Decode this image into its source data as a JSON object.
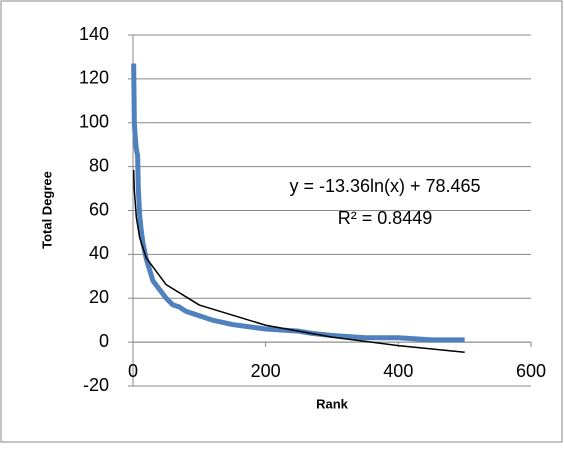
{
  "chart_data": {
    "type": "line",
    "x_label": "Rank",
    "y_label": "Total Degree",
    "annotations": [
      "y = -13.36ln(x) + 78.465",
      "R² = 0.8449"
    ],
    "xlim": [
      0,
      600
    ],
    "xticks": [
      0,
      200,
      400,
      600
    ],
    "ylim": [
      -20,
      140
    ],
    "yticks": [
      -20,
      0,
      20,
      40,
      60,
      80,
      100,
      120,
      140
    ],
    "grid": true,
    "series": [
      {
        "color": "#4f81bd",
        "x": [
          1,
          2,
          3,
          5,
          7,
          8,
          10,
          12,
          15,
          20,
          25,
          30,
          40,
          50,
          60,
          70,
          80,
          100,
          120,
          150,
          200,
          250,
          270,
          300,
          350,
          400,
          450,
          500
        ],
        "values": [
          127,
          100,
          95,
          88,
          85,
          70,
          58,
          52,
          45,
          38,
          33,
          28,
          24,
          20,
          17,
          16,
          14,
          12,
          10,
          8,
          6,
          5,
          4,
          3,
          2,
          2,
          1,
          1
        ]
      },
      {
        "color": "#000000",
        "x": [
          1,
          2,
          5,
          10,
          20,
          50,
          100,
          200,
          300,
          400,
          500
        ],
        "values": [
          78.5,
          69.2,
          57.0,
          47.7,
          38.4,
          26.2,
          16.9,
          7.7,
          2.3,
          -1.6,
          -4.6
        ]
      }
    ]
  }
}
